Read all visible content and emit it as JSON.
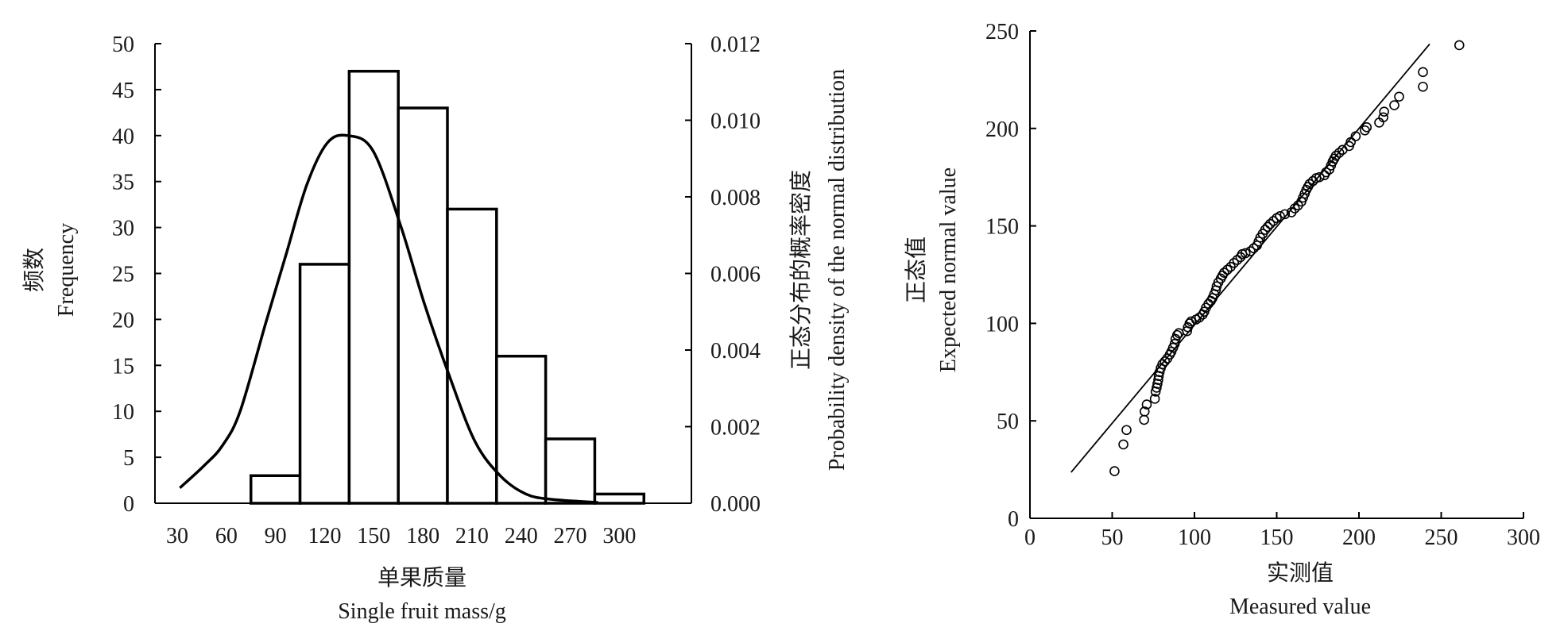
{
  "chart_data": [
    {
      "type": "bar",
      "subtype": "histogram-with-normal-curve",
      "xlabel_cn": "单果质量",
      "xlabel": "Single fruit mass/g",
      "ylabel_cn": "频数",
      "ylabel": "Frequency",
      "y2label_cn": "正态分布的概率密度",
      "y2label": "Probability density of the normal distribution",
      "x_ticks": [
        "30",
        "60",
        "90",
        "120",
        "150",
        "180",
        "210",
        "240",
        "270",
        "300"
      ],
      "x_tick_values": [
        30,
        60,
        90,
        120,
        150,
        180,
        210,
        240,
        270,
        300
      ],
      "xlim": [
        16.4,
        344
      ],
      "bin_width": 30,
      "y_ticks": [
        "0",
        "5",
        "10",
        "15",
        "20",
        "25",
        "30",
        "35",
        "40",
        "45",
        "50"
      ],
      "ylim": [
        0,
        50
      ],
      "y2_ticks": [
        "0.000",
        "0.002",
        "0.004",
        "0.006",
        "0.008",
        "0.010",
        "0.012"
      ],
      "y2lim": [
        0,
        0.012
      ],
      "categories": [
        90,
        120,
        150,
        180,
        210,
        240,
        270,
        300
      ],
      "values": [
        3,
        26,
        47,
        43,
        32,
        16,
        7,
        1
      ],
      "density_curve": {
        "x": [
          31.6,
          46.6,
          57.5,
          68.4,
          84,
          96.5,
          109,
          121.5,
          134,
          149.6,
          166.8,
          181,
          196.4,
          212,
          227.7,
          243,
          258.8,
          287
        ],
        "y": [
          0.0004,
          0.00099,
          0.0015,
          0.0024,
          0.0047,
          0.0065,
          0.0083,
          0.0094,
          0.0096,
          0.0092,
          0.0072,
          0.0052,
          0.0033,
          0.0016,
          0.0007,
          0.00024,
          0.0001,
          2e-05
        ]
      }
    },
    {
      "type": "scatter",
      "subtype": "normal-qq-plot",
      "xlabel_cn": "实测值",
      "xlabel": "Measured value",
      "ylabel_cn": "正态值",
      "ylabel": "Expected normal value",
      "x_ticks": [
        "0",
        "50",
        "100",
        "150",
        "200",
        "250",
        "300"
      ],
      "x_tick_values": [
        0,
        50,
        100,
        150,
        200,
        250,
        300
      ],
      "xlim": [
        0,
        300
      ],
      "y_ticks": [
        "0",
        "50",
        "100",
        "150",
        "200",
        "250"
      ],
      "y_tick_values": [
        0,
        50,
        100,
        150,
        200,
        250
      ],
      "ylim": [
        0,
        250
      ],
      "reference_line": {
        "x": [
          25,
          243
        ],
        "y": [
          23.6,
          243.3
        ]
      },
      "points": [
        [
          51.4,
          24.2
        ],
        [
          56.8,
          37.9
        ],
        [
          58.7,
          45.3
        ],
        [
          69.4,
          50.5
        ],
        [
          69.7,
          54.8
        ],
        [
          71,
          58.4
        ],
        [
          75.9,
          61.3
        ],
        [
          76.4,
          65
        ],
        [
          77,
          67
        ],
        [
          77.5,
          69
        ],
        [
          78,
          71
        ],
        [
          78.3,
          73
        ],
        [
          78.8,
          75
        ],
        [
          79.5,
          77
        ],
        [
          80.5,
          79
        ],
        [
          82,
          80.5
        ],
        [
          83.5,
          82
        ],
        [
          85,
          84
        ],
        [
          86,
          85.5
        ],
        [
          87,
          87.5
        ],
        [
          88,
          89.5
        ],
        [
          88.5,
          92
        ],
        [
          89.5,
          94
        ],
        [
          90.5,
          95
        ],
        [
          95.5,
          96
        ],
        [
          96,
          98
        ],
        [
          97,
          100
        ],
        [
          98,
          101
        ],
        [
          101,
          102
        ],
        [
          103,
          103
        ],
        [
          105,
          104.5
        ],
        [
          106,
          106
        ],
        [
          107,
          108
        ],
        [
          108.5,
          110
        ],
        [
          110,
          111.5
        ],
        [
          111,
          113
        ],
        [
          112,
          115
        ],
        [
          113,
          117
        ],
        [
          113.5,
          119
        ],
        [
          114.5,
          121
        ],
        [
          116,
          123
        ],
        [
          117,
          124.5
        ],
        [
          118,
          126
        ],
        [
          120,
          127.5
        ],
        [
          122,
          129
        ],
        [
          124,
          131
        ],
        [
          126,
          132.5
        ],
        [
          128,
          134
        ],
        [
          129,
          135.5
        ],
        [
          131,
          136
        ],
        [
          134,
          137
        ],
        [
          136,
          138.5
        ],
        [
          138,
          140
        ],
        [
          139,
          142
        ],
        [
          140,
          144
        ],
        [
          141.5,
          146
        ],
        [
          143,
          148
        ],
        [
          144.5,
          149.5
        ],
        [
          146,
          151
        ],
        [
          148,
          152.5
        ],
        [
          150,
          154
        ],
        [
          152,
          155
        ],
        [
          155,
          156
        ],
        [
          159,
          157
        ],
        [
          161,
          159
        ],
        [
          163,
          160.5
        ],
        [
          165,
          162.5
        ],
        [
          166,
          164.5
        ],
        [
          167,
          166.5
        ],
        [
          168,
          168.5
        ],
        [
          169,
          170
        ],
        [
          170,
          171.5
        ],
        [
          172,
          173
        ],
        [
          174,
          174.5
        ],
        [
          176,
          175
        ],
        [
          179,
          176
        ],
        [
          180,
          177.5
        ],
        [
          182,
          179
        ],
        [
          183,
          181
        ],
        [
          184,
          183
        ],
        [
          185,
          184.5
        ],
        [
          186,
          186
        ],
        [
          188,
          187.5
        ],
        [
          190,
          189
        ],
        [
          194,
          191
        ],
        [
          195,
          193
        ],
        [
          198,
          196
        ],
        [
          203.6,
          199
        ],
        [
          204.7,
          200.6
        ],
        [
          212.3,
          203
        ],
        [
          214.8,
          205.7
        ],
        [
          215.3,
          208.6
        ],
        [
          221.5,
          211.9
        ],
        [
          224.4,
          216.3
        ],
        [
          238.9,
          221.4
        ],
        [
          238.9,
          228.9
        ],
        [
          261,
          242.7
        ]
      ]
    }
  ]
}
